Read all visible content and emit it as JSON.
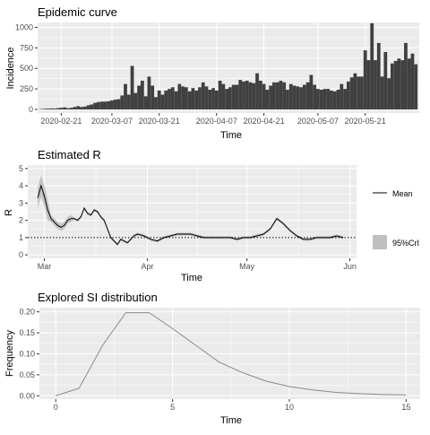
{
  "colors": {
    "panel_background": "#ebebeb",
    "grid": "#ffffff",
    "bar": "#404040",
    "mean_line": "#000000",
    "ribbon": "#bfbfbf",
    "si_line": "#8a8a8a",
    "threshold_line": "#000000",
    "text": "#000000",
    "tick_text": "#4d4d4d"
  },
  "chart_data": [
    {
      "type": "bar",
      "title": "Epidemic curve",
      "xlabel": "Time",
      "ylabel": "Incidence",
      "x_start_date": "2020-02-15",
      "x_tick_labels": [
        "2020-02-21",
        "2020-03-07",
        "2020-03-21",
        "2020-04-07",
        "2020-04-21",
        "2020-05-07",
        "2020-05-21"
      ],
      "x_ticks_day_index": [
        6,
        21,
        35,
        52,
        66,
        82,
        96
      ],
      "y_ticks": [
        0,
        250,
        500,
        750,
        1000
      ],
      "ylim": [
        0,
        1060
      ],
      "grid": true,
      "values": [
        5,
        8,
        10,
        12,
        10,
        15,
        20,
        25,
        15,
        20,
        30,
        40,
        30,
        35,
        50,
        60,
        80,
        90,
        95,
        95,
        100,
        110,
        120,
        125,
        170,
        310,
        180,
        530,
        200,
        290,
        350,
        160,
        400,
        290,
        150,
        230,
        180,
        230,
        250,
        270,
        220,
        310,
        280,
        270,
        220,
        260,
        230,
        270,
        330,
        280,
        240,
        260,
        230,
        350,
        310,
        250,
        270,
        300,
        300,
        360,
        340,
        350,
        330,
        320,
        440,
        350,
        310,
        240,
        290,
        330,
        330,
        350,
        330,
        240,
        310,
        290,
        280,
        270,
        300,
        330,
        420,
        300,
        250,
        240,
        250,
        250,
        230,
        220,
        240,
        310,
        250,
        340,
        390,
        440,
        400,
        400,
        720,
        600,
        1050,
        600,
        810,
        400,
        700,
        380,
        560,
        590,
        620,
        600,
        810,
        620,
        680,
        550
      ]
    },
    {
      "type": "line",
      "title": "Estimated R",
      "xlabel": "Time",
      "ylabel": "R",
      "x_start_date": "2020-02-15",
      "x_tick_labels": [
        "Mar",
        "Apr",
        "May",
        "Jun"
      ],
      "x_ticks_day_index": [
        15,
        46,
        76,
        107
      ],
      "y_ticks": [
        0,
        1,
        2,
        3,
        4,
        5
      ],
      "ylim": [
        -0.2,
        5.2
      ],
      "reference_line": 1,
      "grid": true,
      "legend": [
        "Mean",
        "95%CrI"
      ],
      "legend_placement": "right",
      "series": [
        {
          "name": "Mean",
          "x_day_index": [
            13,
            14,
            15,
            16,
            17,
            18,
            19,
            20,
            21,
            22,
            23,
            24,
            25,
            26,
            27,
            28,
            29,
            30,
            31,
            32,
            33,
            34,
            35,
            36,
            37,
            38,
            39,
            40,
            41,
            42,
            43,
            45,
            47,
            49,
            51,
            53,
            55,
            57,
            59,
            61,
            63,
            65,
            67,
            69,
            71,
            73,
            75,
            77,
            79,
            81,
            83,
            85,
            87,
            89,
            91,
            93,
            95,
            97,
            99,
            101,
            103,
            105
          ],
          "values": [
            3.3,
            4.0,
            3.4,
            2.6,
            2.1,
            1.9,
            1.7,
            1.6,
            1.7,
            2.0,
            2.1,
            2.1,
            2.0,
            2.2,
            2.7,
            2.4,
            2.3,
            2.6,
            2.5,
            2.2,
            2.0,
            1.5,
            1.0,
            0.8,
            0.6,
            0.9,
            0.8,
            0.7,
            0.9,
            1.1,
            1.2,
            1.1,
            0.9,
            0.8,
            1.0,
            1.1,
            1.2,
            1.2,
            1.2,
            1.1,
            1.0,
            1.0,
            1.0,
            1.0,
            1.0,
            0.9,
            1.0,
            1.0,
            1.1,
            1.2,
            1.5,
            2.1,
            1.8,
            1.4,
            1.1,
            0.9,
            0.9,
            1.0,
            1.0,
            1.0,
            1.1,
            1.0
          ]
        }
      ]
    },
    {
      "type": "line",
      "title": "Explored SI distribution",
      "xlabel": "Time",
      "ylabel": "Frequency",
      "x_ticks": [
        0,
        5,
        10,
        15
      ],
      "y_ticks": [
        0.0,
        0.05,
        0.1,
        0.15,
        0.2
      ],
      "y_tick_labels": [
        "0.00",
        "0.05",
        "0.10",
        "0.15",
        "0.20"
      ],
      "xlim": [
        -0.7,
        15.6
      ],
      "ylim": [
        -0.008,
        0.21
      ],
      "grid": true,
      "x": [
        0,
        1,
        2,
        3,
        4,
        5,
        6,
        7,
        8,
        9,
        10,
        11,
        12,
        13,
        14,
        15
      ],
      "values": [
        0.0,
        0.018,
        0.12,
        0.198,
        0.198,
        0.16,
        0.12,
        0.08,
        0.055,
        0.035,
        0.022,
        0.014,
        0.008,
        0.005,
        0.003,
        0.002
      ]
    }
  ]
}
